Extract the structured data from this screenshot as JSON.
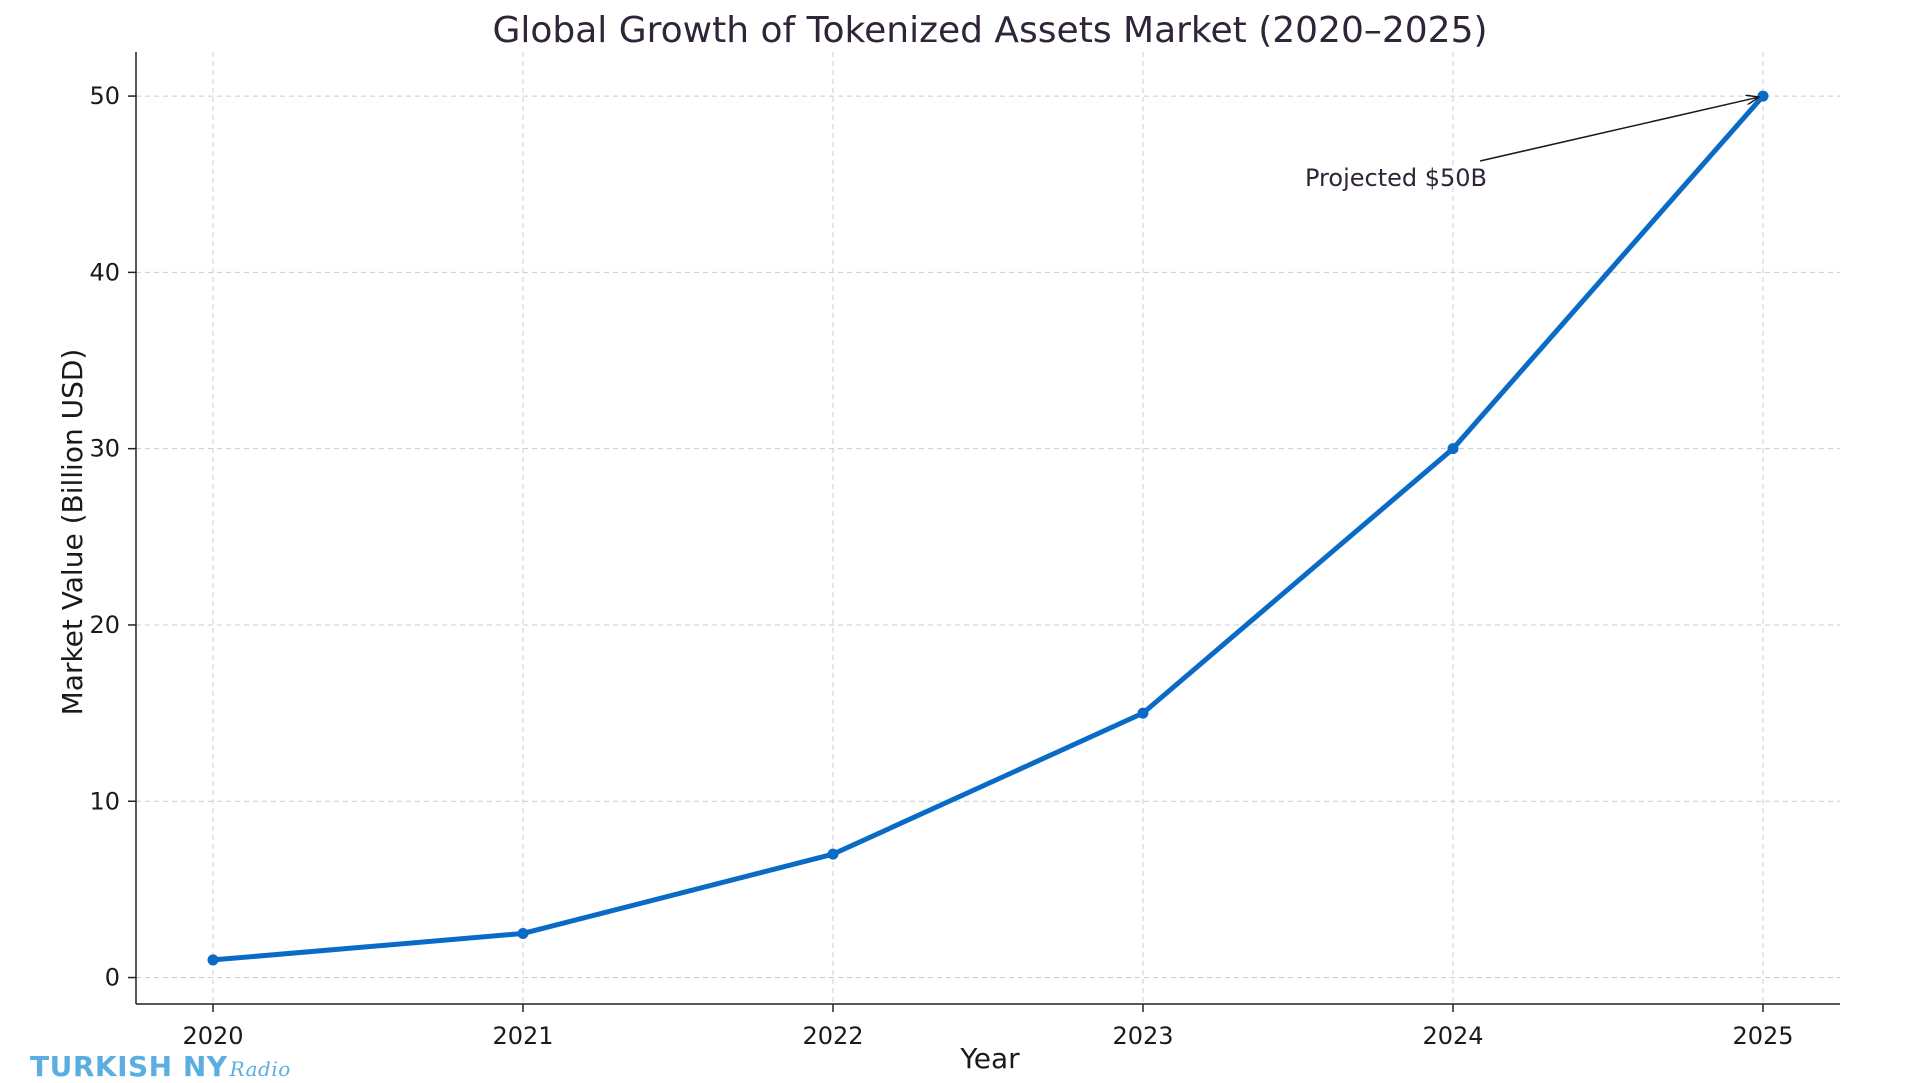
{
  "chart_data": {
    "type": "line",
    "title": "Global Growth of Tokenized Assets Market (2020–2025)",
    "xlabel": "Year",
    "ylabel": "Market Value (Billion USD)",
    "categories": [
      "2020",
      "2021",
      "2022",
      "2023",
      "2024",
      "2025"
    ],
    "series": [
      {
        "values": [
          1,
          2.5,
          7,
          15,
          30,
          50
        ],
        "color": "#0a6bc7"
      }
    ],
    "ylim": [
      -1.5,
      52.5
    ],
    "yticks": [
      0,
      10,
      20,
      30,
      40,
      50
    ],
    "grid": true,
    "markers": true,
    "annotation": {
      "text": "Projected $50B",
      "target_category": "2025",
      "target_value": 50
    }
  },
  "watermark": {
    "text": "TURKISH NY",
    "script": "Radio"
  }
}
